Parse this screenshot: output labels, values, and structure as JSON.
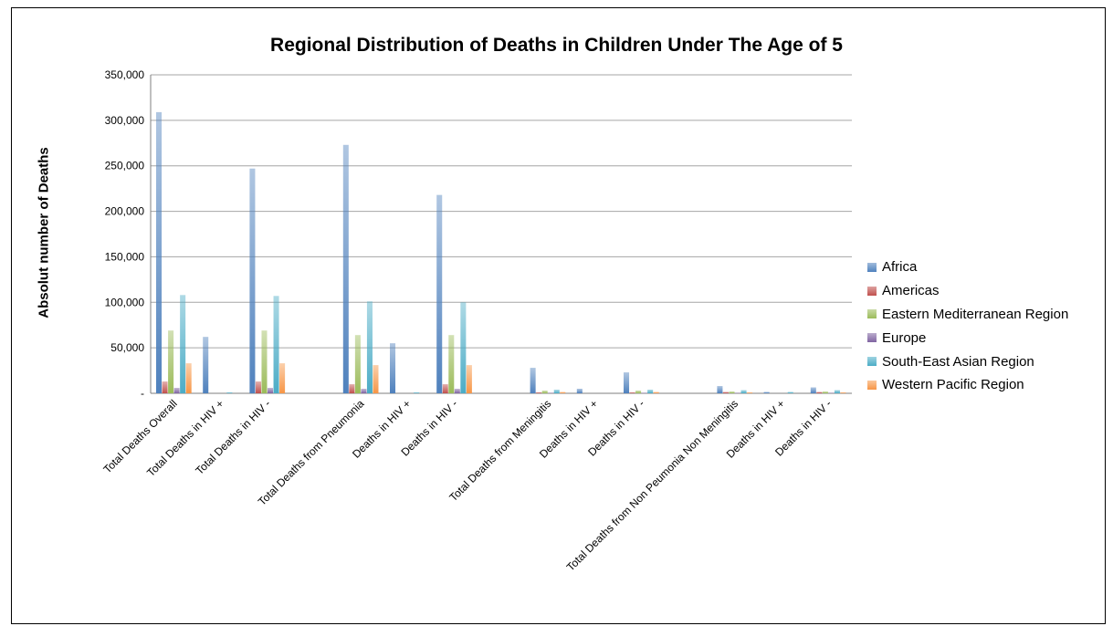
{
  "chart_data": {
    "type": "bar",
    "title": "Regional Distribution of Deaths in Children Under The Age of 5",
    "xlabel": "",
    "ylabel": "Absolut number of Deaths",
    "ylim": [
      0,
      350000
    ],
    "yticks": [
      0,
      50000,
      100000,
      150000,
      200000,
      250000,
      300000,
      350000
    ],
    "ytick_labels": [
      "-",
      "50,000",
      "100,000",
      "150,000",
      "200,000",
      "250,000",
      "300,000",
      "350,000"
    ],
    "grid": true,
    "legend_position": "right",
    "categories": [
      "Total Deaths Overall",
      "Total Deaths in HIV +",
      "Total Deaths in HIV -",
      "",
      "Total Deaths from Pneumonia",
      "Deaths in HIV +",
      "Deaths in HIV -",
      "",
      "Total Deaths from Meningitis",
      "Deaths in HIV +",
      "Deaths in HIV -",
      "",
      "Total Deaths  from Non Peumonia Non Meningitis",
      "Deaths in HIV +",
      "Deaths in HIV -"
    ],
    "series": [
      {
        "name": "Africa",
        "color": "#4f81bd",
        "values": [
          309000,
          62000,
          247000,
          0,
          273000,
          55000,
          218000,
          0,
          28000,
          5000,
          23000,
          0,
          8000,
          1500,
          6500
        ]
      },
      {
        "name": "Americas",
        "color": "#c0504d",
        "values": [
          13000,
          0,
          13000,
          0,
          10000,
          0,
          10000,
          0,
          1000,
          0,
          1000,
          0,
          1500,
          0,
          1500
        ]
      },
      {
        "name": "Eastern Mediterranean Region",
        "color": "#9bbb59",
        "values": [
          69000,
          0,
          69000,
          0,
          64000,
          0,
          64000,
          0,
          3000,
          0,
          3000,
          0,
          2000,
          0,
          2000
        ]
      },
      {
        "name": "Europe",
        "color": "#8064a2",
        "values": [
          6000,
          0,
          6000,
          0,
          5000,
          0,
          5000,
          0,
          500,
          0,
          500,
          0,
          500,
          0,
          500
        ]
      },
      {
        "name": "South-East Asian Region",
        "color": "#4bacc6",
        "values": [
          108000,
          1000,
          107000,
          0,
          101000,
          1000,
          100000,
          0,
          4000,
          0,
          4000,
          0,
          3500,
          1500,
          3500
        ]
      },
      {
        "name": "Western Pacific Region",
        "color": "#f79646",
        "values": [
          33000,
          0,
          33000,
          0,
          31000,
          0,
          31000,
          0,
          1500,
          0,
          1500,
          0,
          1000,
          0,
          1000
        ]
      }
    ]
  }
}
